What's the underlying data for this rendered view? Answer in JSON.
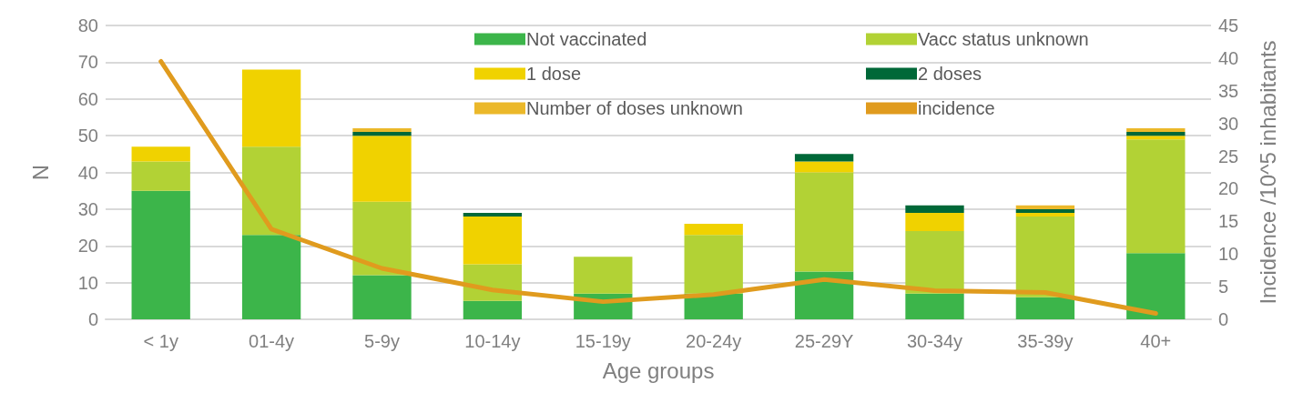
{
  "chart_data": {
    "type": "bar",
    "stacked": true,
    "xlabel": "Age groups",
    "ylabel": "N",
    "y2label": "Incidence /10^5 inhabitants",
    "categories": [
      "< 1y",
      "01-4y",
      "5-9y",
      "10-14y",
      "15-19y",
      "20-24y",
      "25-29Y",
      "30-34y",
      "35-39y",
      "40+"
    ],
    "series": [
      {
        "name": "Not vaccinated",
        "color": "#3cb54a",
        "values": [
          35,
          23,
          12,
          5,
          7,
          7,
          13,
          7,
          6,
          18
        ]
      },
      {
        "name": "Vacc status unknown",
        "color": "#b2d235",
        "values": [
          8,
          24,
          20,
          10,
          10,
          16,
          27,
          17,
          22,
          31
        ]
      },
      {
        "name": "1 dose",
        "color": "#f0d200",
        "values": [
          4,
          21,
          18,
          13,
          0,
          3,
          3,
          5,
          1,
          1
        ]
      },
      {
        "name": "2 doses",
        "color": "#006838",
        "values": [
          0,
          0,
          1,
          1,
          0,
          0,
          2,
          2,
          1,
          1
        ]
      },
      {
        "name": "Number of doses unknown",
        "color": "#ebb82a",
        "values": [
          0,
          0,
          1,
          0,
          0,
          0,
          0,
          0,
          1,
          1
        ]
      },
      {
        "name": "incidence",
        "type": "line",
        "axis": "y2",
        "color": "#e09b1e",
        "values": [
          39.5,
          13.8,
          7.8,
          4.5,
          2.7,
          3.8,
          6.1,
          4.4,
          4.1,
          0.9
        ]
      }
    ],
    "ylim": [
      0,
      80
    ],
    "yticks": [
      0,
      10,
      20,
      30,
      40,
      50,
      60,
      70,
      80
    ],
    "y2lim": [
      0,
      45
    ],
    "y2ticks": [
      0,
      5,
      10,
      15,
      20,
      25,
      30,
      35,
      40,
      45
    ],
    "grid": "y",
    "legend": "top",
    "marker": "none",
    "line_style": "solid"
  }
}
